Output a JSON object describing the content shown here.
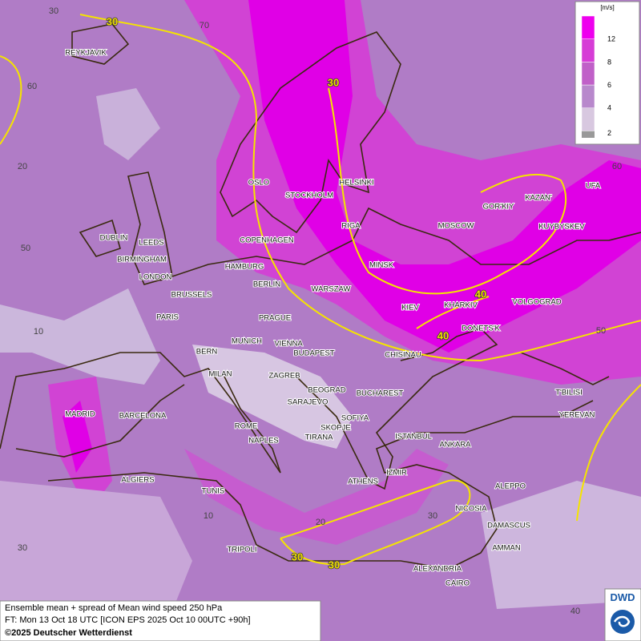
{
  "legend": {
    "unit": "[m/s]",
    "labels": [
      2,
      4,
      6,
      8,
      12
    ]
  },
  "cities": [
    "REYKJAVIK",
    "OSLO",
    "STOCKHOLM",
    "HELSINKI",
    "RIGA",
    "MOSCOW",
    "GOR'KIY",
    "KAZAN'",
    "UFA",
    "KUYBYSKEV",
    "DUBLIN",
    "LEEDS",
    "COPENHAGEN",
    "BIRMINGHAM",
    "MINSK",
    "HAMBURG",
    "LONDON",
    "BERLIN",
    "WARSZAW",
    "BRUSSELS",
    "KIEV",
    "KHARKIV",
    "VOLGOGRAD",
    "PARIS",
    "PRAGUE",
    "DONETS'K",
    "MUNICH",
    "VIENNA",
    "BERN",
    "BUDAPEST",
    "CHISINAU",
    "MILAN",
    "ZAGREB",
    "BEOGRAD",
    "BUCHAREST",
    "T'BILISI",
    "SARAJEVO",
    "MADRID",
    "BARCELONA",
    "YEREVAN",
    "SOFIYA",
    "ROME",
    "SKOPJE",
    "ANKARA",
    "ISTANBUL",
    "NAPLES",
    "TIRANA",
    "IZMIR",
    "ALGIERS",
    "ATHENS",
    "ALEPPO",
    "TUNIS",
    "NICOSIA",
    "DAMASCUS",
    "TRIPOLI",
    "AMMAN",
    "ALEXANDRIA",
    "CAIRO"
  ],
  "contour_labels": [
    "30",
    "30",
    "40",
    "40",
    "30",
    "30"
  ],
  "grid_labels": [
    "30",
    "70",
    "60",
    "20",
    "50",
    "10",
    "60",
    "50",
    "40",
    "30",
    "20",
    "10",
    "30"
  ],
  "footer": {
    "line1": "Ensemble mean + spread of Mean wind speed 250 hPa",
    "line2": "FT: Mon 13 Oct 18 UTC [ICON EPS 2025 Oct 10 00UTC +90h]",
    "line3": "©2025 Deutscher Wetterdienst"
  },
  "logo": "DWD"
}
